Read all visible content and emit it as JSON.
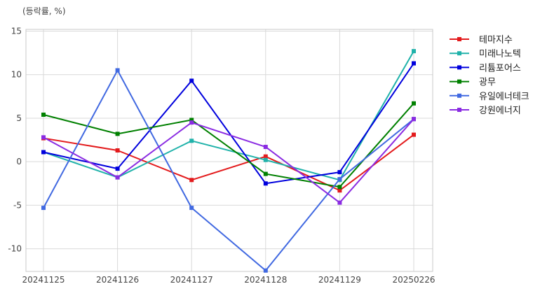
{
  "chart_data": {
    "type": "line",
    "unit_label": "(등락률, %)",
    "categories": [
      "20241125",
      "20241126",
      "20241127",
      "20241128",
      "20241129",
      "20250226"
    ],
    "y_ticks": [
      15,
      10,
      5,
      0,
      -5,
      -10
    ],
    "ylim": [
      -12.6,
      15.2
    ],
    "grid": true,
    "legend_position": "right",
    "series": [
      {
        "name": "테마지수",
        "color": "#e31a1c",
        "values": [
          2.7,
          1.3,
          -2.1,
          0.6,
          -3.3,
          3.1
        ]
      },
      {
        "name": "미래나노텍",
        "color": "#20b2aa",
        "values": [
          1.1,
          -1.8,
          2.4,
          0.2,
          -2.1,
          12.7
        ]
      },
      {
        "name": "리튬포어스",
        "color": "#0000dd",
        "values": [
          1.1,
          -0.8,
          9.3,
          -2.5,
          -1.2,
          11.3
        ]
      },
      {
        "name": "광무",
        "color": "#008000",
        "values": [
          5.4,
          3.2,
          4.8,
          -1.4,
          -2.9,
          6.7
        ]
      },
      {
        "name": "유일에너테크",
        "color": "#4169e1",
        "values": [
          -5.3,
          10.5,
          -5.3,
          -12.5,
          -2.0,
          4.9
        ]
      },
      {
        "name": "강원에너지",
        "color": "#8a2be2",
        "values": [
          2.8,
          -1.8,
          4.5,
          1.7,
          -4.7,
          4.9
        ]
      }
    ]
  }
}
